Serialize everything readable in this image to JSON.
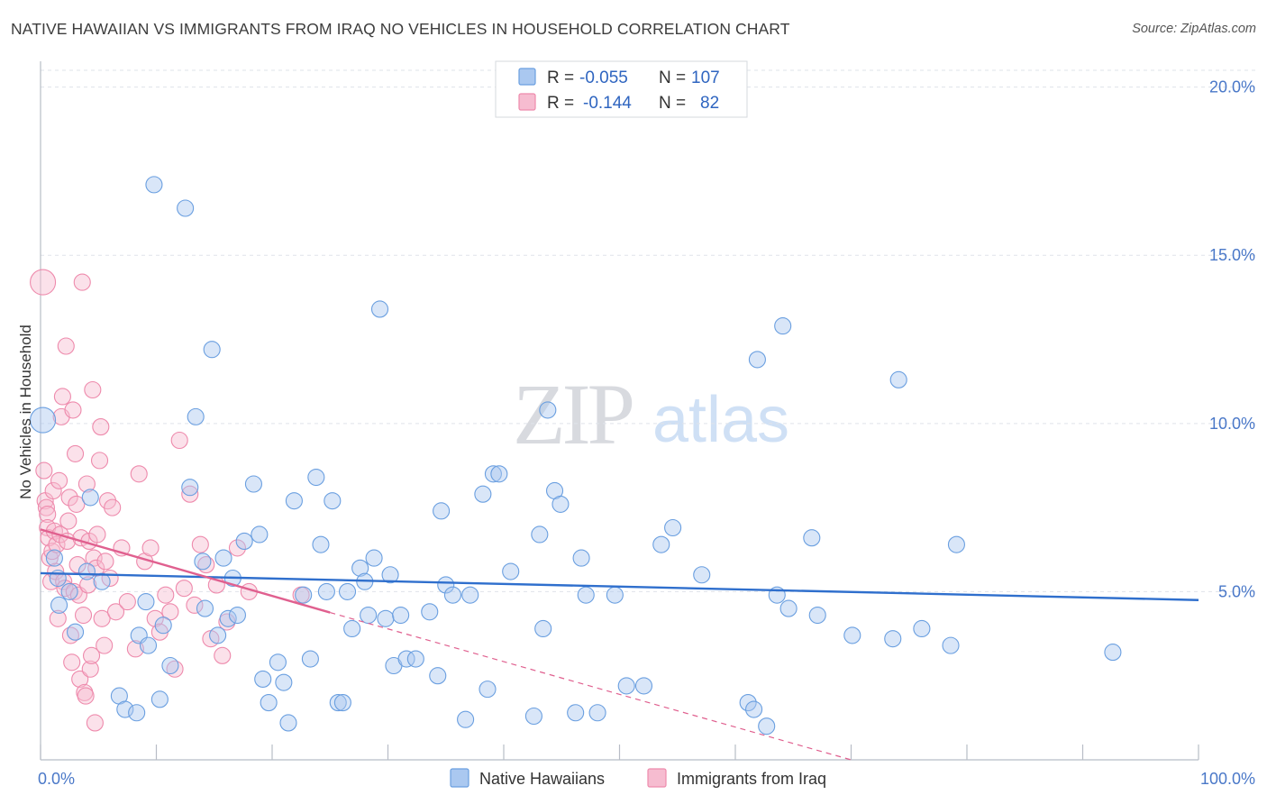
{
  "header": {
    "title": "NATIVE HAWAIIAN VS IMMIGRANTS FROM IRAQ NO VEHICLES IN HOUSEHOLD CORRELATION CHART",
    "source": "Source: ZipAtlas.com"
  },
  "watermark": {
    "zip": "ZIP",
    "atlas": "atlas"
  },
  "colors": {
    "blue_fill": "#aac8f0",
    "blue_stroke": "#6a9fe0",
    "blue_line": "#2f6fcd",
    "pink_fill": "#f6bcd0",
    "pink_stroke": "#ee8aac",
    "pink_line": "#e0608f",
    "tick_text": "#4a78c8",
    "grid": "#dfe3ea"
  },
  "legend": {
    "rows": [
      {
        "r_label": "R =",
        "r_value": "-0.055",
        "n_label": "N =",
        "n_value": "107"
      },
      {
        "r_label": "R =",
        "r_value": "-0.144",
        "n_label": "N =",
        "n_value": "82"
      }
    ]
  },
  "chart_data": {
    "type": "scatter",
    "title": "NATIVE HAWAIIAN VS IMMIGRANTS FROM IRAQ NO VEHICLES IN HOUSEHOLD CORRELATION CHART",
    "xlabel": "",
    "ylabel": "No Vehicles in Household",
    "xlim": [
      0,
      100
    ],
    "ylim": [
      0,
      20.5
    ],
    "x_tick_labels": [
      {
        "value": 0,
        "label": "0.0%"
      },
      {
        "value": 100,
        "label": "100.0%"
      }
    ],
    "y_tick_labels": [
      {
        "value": 5,
        "label": "5.0%"
      },
      {
        "value": 10,
        "label": "10.0%"
      },
      {
        "value": 15,
        "label": "15.0%"
      },
      {
        "value": 20,
        "label": "20.0%"
      }
    ],
    "x_minor_ticks": [
      0,
      10,
      20,
      30,
      40,
      50,
      60,
      70,
      80,
      90,
      100
    ],
    "series": [
      {
        "name": "Native Hawaiians",
        "color": "blue",
        "trend": {
          "x": [
            0,
            100
          ],
          "y": [
            5.55,
            4.75
          ]
        },
        "points": [
          [
            0.2,
            10.1
          ],
          [
            1.2,
            6.0
          ],
          [
            1.5,
            5.4
          ],
          [
            1.6,
            4.6
          ],
          [
            2.5,
            5.0
          ],
          [
            3.0,
            3.8
          ],
          [
            4.0,
            5.6
          ],
          [
            4.3,
            7.8
          ],
          [
            5.3,
            5.3
          ],
          [
            6.8,
            1.9
          ],
          [
            7.3,
            1.5
          ],
          [
            8.3,
            1.4
          ],
          [
            8.5,
            3.7
          ],
          [
            9.1,
            4.7
          ],
          [
            9.3,
            3.4
          ],
          [
            9.8,
            17.1
          ],
          [
            10.3,
            1.8
          ],
          [
            10.6,
            4.0
          ],
          [
            11.2,
            2.8
          ],
          [
            12.5,
            16.4
          ],
          [
            12.9,
            8.1
          ],
          [
            13.4,
            10.2
          ],
          [
            14.0,
            5.9
          ],
          [
            14.2,
            4.5
          ],
          [
            14.8,
            12.2
          ],
          [
            15.3,
            3.7
          ],
          [
            15.8,
            6.0
          ],
          [
            16.2,
            4.2
          ],
          [
            16.6,
            5.4
          ],
          [
            17.0,
            4.3
          ],
          [
            17.6,
            6.5
          ],
          [
            18.4,
            8.2
          ],
          [
            18.9,
            6.7
          ],
          [
            19.2,
            2.4
          ],
          [
            19.7,
            1.7
          ],
          [
            20.5,
            2.9
          ],
          [
            21.0,
            2.3
          ],
          [
            21.4,
            1.1
          ],
          [
            21.9,
            7.7
          ],
          [
            22.7,
            4.9
          ],
          [
            23.3,
            3.0
          ],
          [
            23.8,
            8.4
          ],
          [
            24.2,
            6.4
          ],
          [
            24.7,
            5.0
          ],
          [
            25.2,
            7.7
          ],
          [
            25.7,
            1.7
          ],
          [
            26.1,
            1.7
          ],
          [
            26.5,
            5.0
          ],
          [
            26.9,
            3.9
          ],
          [
            27.6,
            5.7
          ],
          [
            28.0,
            5.3
          ],
          [
            28.3,
            4.3
          ],
          [
            28.8,
            6.0
          ],
          [
            29.3,
            13.4
          ],
          [
            29.8,
            4.2
          ],
          [
            30.2,
            5.5
          ],
          [
            30.5,
            2.8
          ],
          [
            31.1,
            4.3
          ],
          [
            31.6,
            3.0
          ],
          [
            32.4,
            3.0
          ],
          [
            33.6,
            4.4
          ],
          [
            34.3,
            2.5
          ],
          [
            34.6,
            7.4
          ],
          [
            35.0,
            5.2
          ],
          [
            35.6,
            4.9
          ],
          [
            36.7,
            1.2
          ],
          [
            37.1,
            4.9
          ],
          [
            38.2,
            7.9
          ],
          [
            38.6,
            2.1
          ],
          [
            39.1,
            8.5
          ],
          [
            39.6,
            8.5
          ],
          [
            40.6,
            5.6
          ],
          [
            42.6,
            1.3
          ],
          [
            43.1,
            6.7
          ],
          [
            43.4,
            3.9
          ],
          [
            43.8,
            10.4
          ],
          [
            44.4,
            8.0
          ],
          [
            44.9,
            7.6
          ],
          [
            46.2,
            1.4
          ],
          [
            46.7,
            6.0
          ],
          [
            47.1,
            4.9
          ],
          [
            48.1,
            1.4
          ],
          [
            49.6,
            4.9
          ],
          [
            50.6,
            2.2
          ],
          [
            52.1,
            2.2
          ],
          [
            53.6,
            6.4
          ],
          [
            54.6,
            6.9
          ],
          [
            57.1,
            5.5
          ],
          [
            61.1,
            1.7
          ],
          [
            61.6,
            1.5
          ],
          [
            61.9,
            11.9
          ],
          [
            62.7,
            1.0
          ],
          [
            63.6,
            4.9
          ],
          [
            64.1,
            12.9
          ],
          [
            64.6,
            4.5
          ],
          [
            66.6,
            6.6
          ],
          [
            67.1,
            4.3
          ],
          [
            70.1,
            3.7
          ],
          [
            73.6,
            3.6
          ],
          [
            74.1,
            11.3
          ],
          [
            76.1,
            3.9
          ],
          [
            78.6,
            3.4
          ],
          [
            79.1,
            6.4
          ],
          [
            92.6,
            3.2
          ]
        ]
      },
      {
        "name": "Immigrants from Iraq",
        "color": "pink",
        "trend": {
          "x": [
            0,
            25
          ],
          "y": [
            6.85,
            4.38
          ],
          "dashed_extension": {
            "x": [
              25,
              70
            ],
            "y": [
              4.38,
              0.0
            ]
          }
        },
        "points": [
          [
            0.2,
            14.2
          ],
          [
            0.3,
            8.6
          ],
          [
            0.4,
            7.7
          ],
          [
            0.5,
            7.5
          ],
          [
            0.6,
            7.3
          ],
          [
            0.6,
            6.9
          ],
          [
            0.7,
            6.6
          ],
          [
            0.8,
            6.0
          ],
          [
            0.9,
            5.3
          ],
          [
            1.0,
            6.2
          ],
          [
            1.1,
            8.0
          ],
          [
            1.2,
            6.8
          ],
          [
            1.3,
            5.6
          ],
          [
            1.4,
            6.4
          ],
          [
            1.5,
            4.2
          ],
          [
            1.6,
            8.3
          ],
          [
            1.7,
            6.7
          ],
          [
            1.8,
            10.2
          ],
          [
            1.9,
            10.8
          ],
          [
            2.0,
            5.3
          ],
          [
            2.1,
            5.1
          ],
          [
            2.2,
            12.3
          ],
          [
            2.3,
            6.5
          ],
          [
            2.4,
            7.1
          ],
          [
            2.5,
            7.8
          ],
          [
            2.6,
            3.7
          ],
          [
            2.7,
            2.9
          ],
          [
            2.8,
            10.4
          ],
          [
            2.9,
            5.0
          ],
          [
            3.0,
            9.1
          ],
          [
            3.1,
            7.6
          ],
          [
            3.2,
            5.8
          ],
          [
            3.3,
            4.9
          ],
          [
            3.4,
            2.4
          ],
          [
            3.5,
            6.6
          ],
          [
            3.6,
            14.2
          ],
          [
            3.7,
            4.3
          ],
          [
            3.8,
            2.0
          ],
          [
            3.9,
            1.9
          ],
          [
            4.0,
            8.2
          ],
          [
            4.1,
            5.2
          ],
          [
            4.2,
            6.5
          ],
          [
            4.3,
            2.7
          ],
          [
            4.4,
            3.1
          ],
          [
            4.5,
            11.0
          ],
          [
            4.6,
            6.0
          ],
          [
            4.7,
            1.1
          ],
          [
            4.8,
            5.7
          ],
          [
            4.9,
            6.7
          ],
          [
            5.1,
            8.9
          ],
          [
            5.2,
            9.9
          ],
          [
            5.3,
            4.2
          ],
          [
            5.5,
            3.4
          ],
          [
            5.6,
            5.9
          ],
          [
            5.8,
            7.7
          ],
          [
            6.0,
            5.4
          ],
          [
            6.2,
            7.5
          ],
          [
            6.5,
            4.4
          ],
          [
            7.0,
            6.3
          ],
          [
            7.5,
            4.7
          ],
          [
            8.2,
            3.3
          ],
          [
            8.5,
            8.5
          ],
          [
            9.0,
            5.9
          ],
          [
            9.5,
            6.3
          ],
          [
            9.9,
            4.2
          ],
          [
            10.3,
            3.8
          ],
          [
            10.8,
            4.9
          ],
          [
            11.2,
            4.4
          ],
          [
            11.6,
            2.7
          ],
          [
            12.0,
            9.5
          ],
          [
            12.4,
            5.1
          ],
          [
            12.9,
            7.9
          ],
          [
            13.3,
            4.6
          ],
          [
            13.8,
            6.4
          ],
          [
            14.3,
            5.8
          ],
          [
            14.7,
            3.6
          ],
          [
            15.2,
            5.2
          ],
          [
            15.7,
            3.1
          ],
          [
            16.1,
            4.1
          ],
          [
            17.0,
            6.3
          ],
          [
            18.0,
            5.0
          ],
          [
            22.5,
            4.9
          ]
        ]
      }
    ]
  },
  "bottom_legend": {
    "items": [
      {
        "label": "Native Hawaiians"
      },
      {
        "label": "Immigrants from Iraq"
      }
    ]
  }
}
